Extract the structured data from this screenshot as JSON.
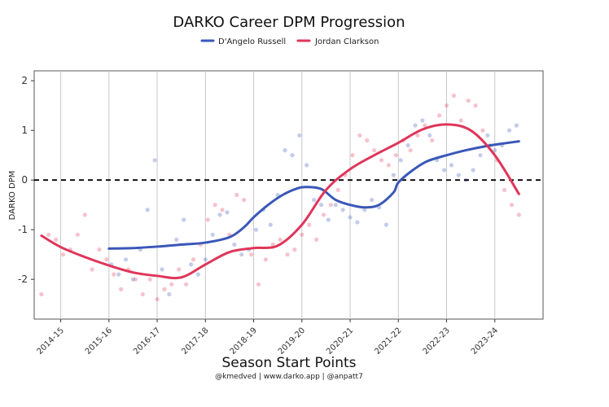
{
  "chart_data": {
    "type": "line",
    "title": "DARKO Career DPM Progression",
    "xlabel": "Season Start Points",
    "ylabel": "DARKO DPM",
    "caption": "@kmedved | www.darko.app | @anpatt7",
    "x_ticks": [
      "2014-15",
      "2015-16",
      "2016-17",
      "2017-18",
      "2018-19",
      "2019-20",
      "2020-21",
      "2021-22",
      "2022-23",
      "2023-24"
    ],
    "y_ticks": [
      "-2",
      "-1",
      "0",
      "1",
      "2"
    ],
    "xlim": [
      -0.55,
      10.0
    ],
    "ylim": [
      -2.8,
      2.2
    ],
    "reference_line": {
      "y": 0,
      "style": "dashed"
    },
    "grid": "vertical",
    "legend_position": "top-center",
    "series": [
      {
        "name": "D'Angelo Russell",
        "color": "#3a57b8",
        "smooth_x": [
          1.0,
          1.5,
          2.0,
          2.5,
          3.0,
          3.5,
          3.8,
          4.0,
          4.3,
          4.6,
          4.9,
          5.1,
          5.4,
          5.7,
          6.0,
          6.3,
          6.6,
          6.9,
          7.0,
          7.3,
          7.6,
          8.0,
          8.4,
          8.8,
          9.2,
          9.5
        ],
        "smooth_y": [
          -1.38,
          -1.37,
          -1.34,
          -1.3,
          -1.26,
          -1.15,
          -0.95,
          -0.75,
          -0.5,
          -0.3,
          -0.17,
          -0.14,
          -0.18,
          -0.4,
          -0.5,
          -0.55,
          -0.5,
          -0.25,
          -0.05,
          0.2,
          0.38,
          0.5,
          0.6,
          0.68,
          0.74,
          0.78
        ],
        "points_x": [
          1.05,
          1.2,
          1.35,
          1.5,
          1.65,
          1.8,
          1.95,
          2.1,
          2.25,
          2.4,
          2.55,
          2.7,
          2.85,
          3.0,
          3.15,
          3.3,
          3.45,
          3.6,
          3.75,
          3.9,
          4.05,
          4.2,
          4.35,
          4.5,
          4.65,
          4.8,
          4.95,
          5.1,
          5.25,
          5.4,
          5.55,
          5.7,
          5.85,
          6.0,
          6.15,
          6.3,
          6.45,
          6.6,
          6.75,
          6.9,
          7.05,
          7.2,
          7.35,
          7.5,
          7.65,
          7.8,
          7.95,
          8.1,
          8.25,
          8.4,
          8.55,
          8.7,
          8.85,
          9.0,
          9.15,
          9.3,
          9.45
        ],
        "points_y": [
          -1.7,
          -1.9,
          -1.6,
          -2.0,
          -1.4,
          -0.6,
          0.4,
          -1.8,
          -2.3,
          -1.2,
          -0.8,
          -1.7,
          -1.9,
          -1.6,
          -1.1,
          -0.7,
          -0.65,
          -1.3,
          -1.5,
          -1.4,
          -1.0,
          -0.6,
          -0.9,
          -0.3,
          0.6,
          0.5,
          0.9,
          0.3,
          -0.4,
          -0.5,
          -0.8,
          -0.5,
          -0.6,
          -0.75,
          -0.85,
          -0.6,
          -0.4,
          -0.55,
          -0.9,
          0.1,
          0.4,
          0.7,
          1.1,
          1.2,
          0.9,
          0.4,
          0.2,
          0.3,
          0.1,
          0.0,
          0.2,
          0.5,
          0.9,
          0.6,
          0.7,
          1.0,
          1.1
        ]
      },
      {
        "name": "Jordan Clarkson",
        "color": "#e0355a",
        "smooth_x": [
          -0.4,
          0.0,
          0.5,
          1.0,
          1.5,
          2.0,
          2.5,
          3.0,
          3.5,
          4.0,
          4.5,
          5.0,
          5.5,
          6.0,
          6.5,
          7.0,
          7.5,
          8.0,
          8.5,
          9.0,
          9.5
        ],
        "smooth_y": [
          -1.12,
          -1.35,
          -1.55,
          -1.72,
          -1.86,
          -1.93,
          -1.96,
          -1.7,
          -1.45,
          -1.37,
          -1.32,
          -0.9,
          -0.2,
          0.22,
          0.5,
          0.75,
          1.02,
          1.12,
          1.0,
          0.5,
          -0.28
        ],
        "points_x": [
          -0.4,
          -0.25,
          -0.1,
          0.05,
          0.2,
          0.35,
          0.5,
          0.65,
          0.8,
          0.95,
          1.1,
          1.25,
          1.4,
          1.55,
          1.7,
          1.85,
          2.0,
          2.15,
          2.3,
          2.45,
          2.6,
          2.75,
          2.9,
          3.05,
          3.2,
          3.35,
          3.5,
          3.65,
          3.8,
          3.95,
          4.1,
          4.25,
          4.4,
          4.55,
          4.7,
          4.85,
          5.0,
          5.15,
          5.3,
          5.45,
          5.6,
          5.75,
          5.9,
          6.05,
          6.2,
          6.35,
          6.5,
          6.65,
          6.8,
          6.95,
          7.1,
          7.25,
          7.4,
          7.55,
          7.7,
          7.85,
          8.0,
          8.15,
          8.3,
          8.45,
          8.6,
          8.75,
          8.9,
          9.05,
          9.2,
          9.35,
          9.5
        ],
        "points_y": [
          -2.3,
          -1.1,
          -1.2,
          -1.5,
          -1.4,
          -1.1,
          -0.7,
          -1.8,
          -1.4,
          -1.6,
          -1.9,
          -2.2,
          -1.8,
          -2.0,
          -2.3,
          -2.0,
          -2.4,
          -2.2,
          -2.1,
          -1.8,
          -2.1,
          -1.6,
          -1.3,
          -0.8,
          -0.5,
          -0.6,
          -1.1,
          -0.3,
          -0.4,
          -1.5,
          -2.1,
          -1.6,
          -1.3,
          -1.2,
          -1.5,
          -1.4,
          -1.1,
          -0.9,
          -1.2,
          -0.7,
          -0.5,
          -0.2,
          0.1,
          0.5,
          0.9,
          0.8,
          0.6,
          0.4,
          0.3,
          0.5,
          0.8,
          0.6,
          0.9,
          1.1,
          0.8,
          1.3,
          1.5,
          1.7,
          1.2,
          1.6,
          1.5,
          1.0,
          0.7,
          0.4,
          -0.2,
          -0.5,
          -0.7
        ]
      }
    ]
  }
}
